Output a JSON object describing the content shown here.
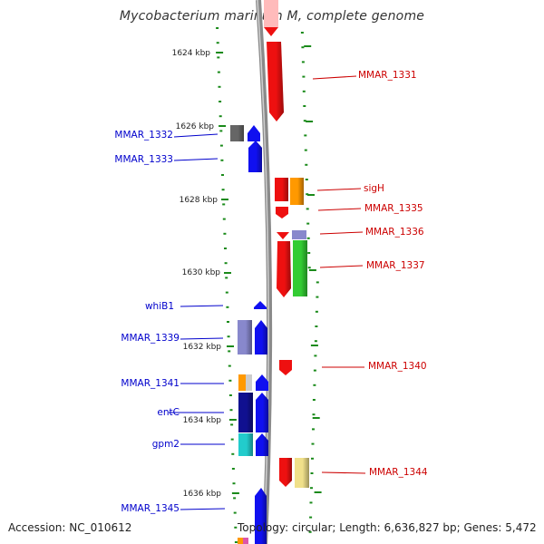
{
  "title": "Mycobacterium marinum M, complete genome",
  "accession_text": "Accession: NC_010612",
  "summary_text": "Topology: circular; Length: 6,636,827 bp; Genes: 5,472",
  "ruler_labels": [
    "1624 kbp",
    "1626 kbp",
    "1628 kbp",
    "1630 kbp",
    "1632 kbp",
    "1634 kbp",
    "1636 kbp"
  ],
  "colors": {
    "backbone": "#8a8a8a",
    "tick": "#1a8a1a",
    "left_label": "#0000cc",
    "right_label": "#cc0000",
    "blue_gene": "#1010f0",
    "red_gene": "#ee1010",
    "orange_cog": "#ff9900",
    "green_cog": "#33cc33",
    "gray_cog": "#666666",
    "lavender_cog": "#8888cc",
    "cyan_cog": "#22cccc",
    "pale_yellow_cog": "#f0e08a",
    "light_pink_gene": "#ffbbbb"
  },
  "left_gene_labels": [
    "MMAR_1332",
    "MMAR_1333",
    "whiB1",
    "MMAR_1339",
    "MMAR_1341",
    "entC",
    "gpm2",
    "MMAR_1345"
  ],
  "right_gene_labels": [
    "MMAR_1331",
    "sigH",
    "MMAR_1335",
    "MMAR_1336",
    "MMAR_1337",
    "MMAR_1340",
    "MMAR_1344"
  ]
}
